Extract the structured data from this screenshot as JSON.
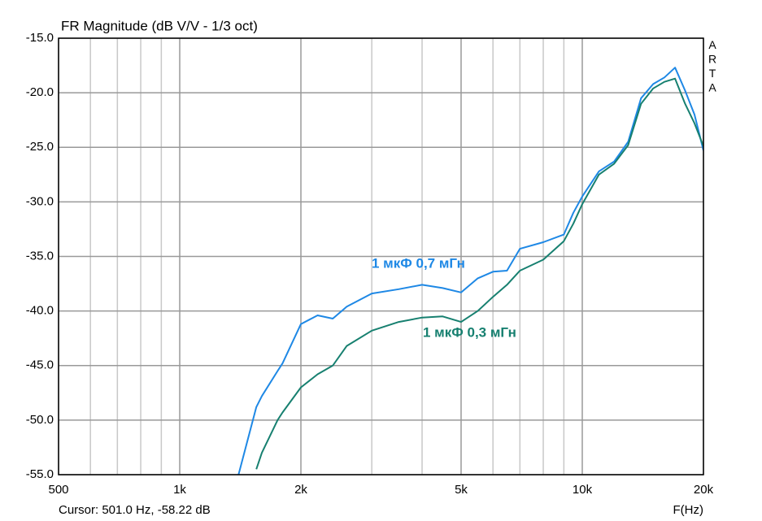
{
  "chart_data": {
    "type": "line",
    "title": "FR Magnitude (dB V/V - 1/3 oct)",
    "watermark": "ARTA",
    "cursor_text": "Cursor: 501.0 Hz, -58.22 dB",
    "x_label": "F(Hz)",
    "log_x": true,
    "grid": true,
    "xlim": [
      500,
      20000
    ],
    "xticks": [
      500,
      {
        "value": 1000,
        "label": "1k"
      },
      {
        "value": 2000,
        "label": "2k"
      },
      {
        "value": 5000,
        "label": "5k"
      },
      {
        "value": 10000,
        "label": "10k"
      },
      {
        "value": 20000,
        "label": "20k"
      }
    ],
    "xgrid": [
      600,
      700,
      800,
      900,
      3000,
      4000,
      6000,
      7000,
      8000,
      9000
    ],
    "ylim": [
      -55,
      -15
    ],
    "yticks": [
      {
        "value": -15,
        "label": "-15.0"
      },
      {
        "value": -20,
        "label": "-20.0"
      },
      {
        "value": -25,
        "label": "-25.0"
      },
      {
        "value": -30,
        "label": "-30.0"
      },
      {
        "value": -35,
        "label": "-35.0"
      },
      {
        "value": -40,
        "label": "-40.0"
      },
      {
        "value": -45,
        "label": "-45.0"
      },
      {
        "value": -50,
        "label": "-50.0"
      },
      {
        "value": -55,
        "label": "-55.0"
      }
    ],
    "x": [
      1400,
      1550,
      1600,
      1750,
      1800,
      2000,
      2200,
      2400,
      2600,
      3000,
      3500,
      4000,
      4500,
      5000,
      5500,
      6000,
      6500,
      7000,
      8000,
      9000,
      9500,
      10000,
      11000,
      12000,
      13000,
      14000,
      15000,
      16000,
      17000,
      18000,
      19000,
      20000
    ],
    "series": [
      {
        "name": "1 мкФ 0,7 мГн",
        "color": "#1e88e5",
        "values": [
          -55,
          -48.8,
          -47.8,
          -45.5,
          -44.8,
          -41.2,
          -40.4,
          -40.7,
          -39.6,
          -38.4,
          -38.0,
          -37.6,
          -37.9,
          -38.3,
          -37.0,
          -36.4,
          -36.3,
          -34.3,
          -33.7,
          -33.0,
          -31.0,
          -29.5,
          -27.2,
          -26.3,
          -24.5,
          -20.5,
          -19.2,
          -18.6,
          -17.7,
          -19.8,
          -22.0,
          -25.3
        ]
      },
      {
        "name": "1 мкФ 0,3 мГн",
        "color": "#178070",
        "values": [
          null,
          -54.5,
          -53.0,
          -50.0,
          -49.3,
          -47.0,
          -45.8,
          -45.0,
          -43.2,
          -41.8,
          -41.0,
          -40.6,
          -40.5,
          -41.0,
          -40.0,
          -38.7,
          -37.6,
          -36.3,
          -35.3,
          -33.6,
          -32.0,
          -30.2,
          -27.5,
          -26.5,
          -24.8,
          -21.0,
          -19.6,
          -19.0,
          -18.7,
          -21.0,
          -22.8,
          -24.9
        ]
      }
    ]
  }
}
